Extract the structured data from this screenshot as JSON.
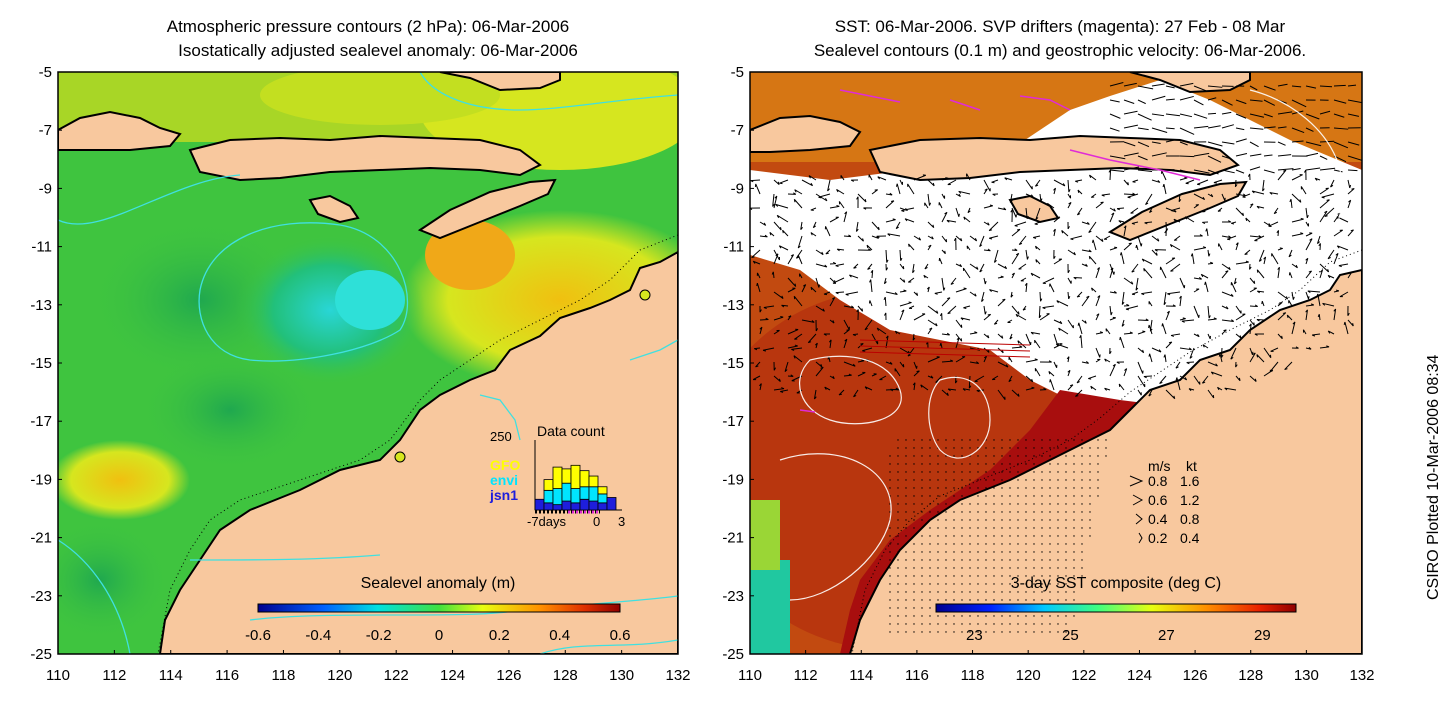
{
  "colors": {
    "land": "#f8c89e",
    "ocean_green": "#3fc43f",
    "ocean_yellow": "#d6e61f",
    "ocean_cyan": "#29d6d6",
    "contour": "#40e0e0",
    "sst_red": "#a80e0e",
    "sst_orange": "#d9650e",
    "drifter": "#e02bd6",
    "gfo": "#ffff00",
    "envi": "#00e5ff",
    "jsn1": "#1e1edc"
  },
  "left_panel": {
    "title_line1": "Atmospheric pressure contours (2 hPa): 06-Mar-2006",
    "title_line2": "Isostatically adjusted sealevel anomaly: 06-Mar-2006",
    "y_ticks": [
      "-5",
      "-7",
      "-9",
      "-11",
      "-13",
      "-15",
      "-17",
      "-19",
      "-21",
      "-23",
      "-25"
    ],
    "x_ticks": [
      "110",
      "112",
      "114",
      "116",
      "118",
      "120",
      "122",
      "124",
      "126",
      "128",
      "130",
      "132"
    ],
    "colorbar": {
      "label": "Sealevel anomaly (m)",
      "ticks": [
        "-0.6",
        "-0.4",
        "-0.2",
        "0",
        "0.2",
        "0.4",
        "0.6"
      ]
    },
    "data_count": {
      "title": "Data count",
      "max_label": "250",
      "legend": [
        "GFO",
        "envi",
        "jsn1"
      ],
      "x_labels": [
        "-7days",
        "0",
        "3"
      ],
      "bars": [
        {
          "gfo": 0.0,
          "envi": 0.0,
          "jsn1": 0.3
        },
        {
          "gfo": 0.3,
          "envi": 0.35,
          "jsn1": 0.2
        },
        {
          "gfo": 0.6,
          "envi": 0.45,
          "jsn1": 0.15
        },
        {
          "gfo": 0.4,
          "envi": 0.5,
          "jsn1": 0.25
        },
        {
          "gfo": 0.65,
          "envi": 0.4,
          "jsn1": 0.2
        },
        {
          "gfo": 0.45,
          "envi": 0.35,
          "jsn1": 0.3
        },
        {
          "gfo": 0.3,
          "envi": 0.4,
          "jsn1": 0.25
        },
        {
          "gfo": 0.2,
          "envi": 0.25,
          "jsn1": 0.2
        },
        {
          "gfo": 0.0,
          "envi": 0.0,
          "jsn1": 0.35
        }
      ]
    }
  },
  "right_panel": {
    "title_line1": "SST: 06-Mar-2006. SVP drifters (magenta): 27 Feb - 08 Mar",
    "title_line2": "Sealevel contours (0.1 m) and geostrophic velocity: 06-Mar-2006.",
    "y_ticks": [
      "-5",
      "-7",
      "-9",
      "-11",
      "-13",
      "-15",
      "-17",
      "-19",
      "-21",
      "-23",
      "-25"
    ],
    "x_ticks": [
      "110",
      "112",
      "114",
      "116",
      "118",
      "120",
      "122",
      "124",
      "126",
      "128",
      "130",
      "132"
    ],
    "colorbar": {
      "label": "3-day SST composite (deg C)",
      "ticks": [
        "23",
        "25",
        "27",
        "29"
      ]
    },
    "velocity_legend": {
      "header_ms": "m/s",
      "header_kt": "kt",
      "rows": [
        {
          "ms": "0.8",
          "kt": "1.6"
        },
        {
          "ms": "0.6",
          "kt": "1.2"
        },
        {
          "ms": "0.4",
          "kt": "0.8"
        },
        {
          "ms": "0.2",
          "kt": "0.4"
        }
      ]
    }
  },
  "side_label": "CSIRO Plotted 10-Mar-2006 08:34"
}
